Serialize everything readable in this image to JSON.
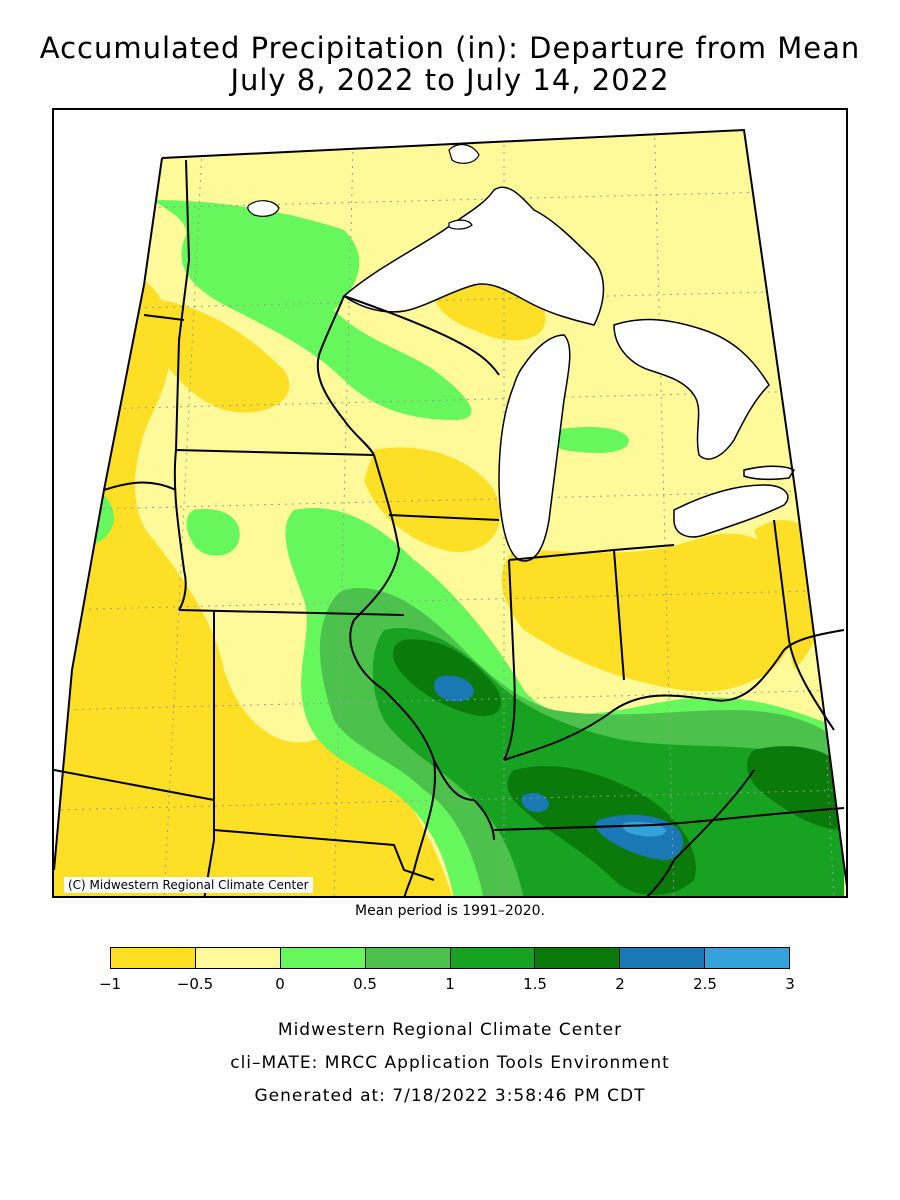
{
  "title": {
    "line1": "Accumulated Precipitation (in): Departure from Mean",
    "line2": "July 8, 2022 to July 14, 2022"
  },
  "map": {
    "copyright": "(C) Midwestern Regional Climate Center",
    "mean_note": "Mean period is 1991–2020.",
    "colors": {
      "lake": "#ffffff",
      "boundary": "#000000",
      "graticule": "#999999"
    }
  },
  "legend": {
    "ticks": [
      "−1",
      "−0.5",
      "0",
      "0.5",
      "1",
      "1.5",
      "2",
      "2.5",
      "3"
    ],
    "bins": [
      {
        "range": "-1 to -0.5",
        "color": "#fde026"
      },
      {
        "range": "-0.5 to 0",
        "color": "#fefa9a"
      },
      {
        "range": "0 to 0.5",
        "color": "#66f75c"
      },
      {
        "range": "0.5 to 1",
        "color": "#4cc24d"
      },
      {
        "range": "1 to 1.5",
        "color": "#17a221"
      },
      {
        "range": "1.5 to 2",
        "color": "#0a7a0a"
      },
      {
        "range": "2 to 2.5",
        "color": "#1a78b4"
      },
      {
        "range": "2.5 to 3",
        "color": "#34a3dc"
      }
    ]
  },
  "footer": {
    "line1": "Midwestern Regional Climate Center",
    "line2": "cli–MATE: MRCC Application Tools Environment",
    "line3": "Generated at: 7/18/2022 3:58:46 PM CDT"
  }
}
